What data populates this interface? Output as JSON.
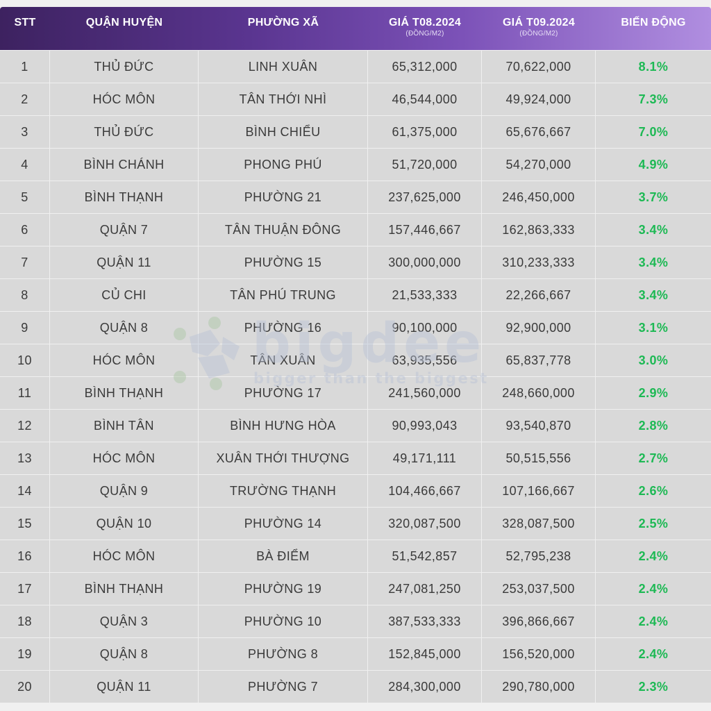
{
  "header": {
    "stt": "STT",
    "district": "QUẬN HUYỆN",
    "ward": "PHƯỜNG XÃ",
    "price_aug": "GIÁ T08.2024",
    "price_aug_unit": "(ĐỒNG/M2)",
    "price_sep": "GIÁ T09.2024",
    "price_sep_unit": "(ĐỒNG/M2)",
    "change": "BIẾN ĐỘNG"
  },
  "watermark": {
    "brand": "bigdee",
    "slogan": "bigger than the biggest"
  },
  "colors": {
    "header_start": "#3d2260",
    "header_end": "#b08ee0",
    "cell_bg": "#d9d9d9",
    "positive": "#1db954"
  },
  "chart_data": {
    "type": "table",
    "columns": [
      "STT",
      "QUẬN HUYỆN",
      "PHƯỜNG XÃ",
      "GIÁ T08.2024 (ĐỒNG/M2)",
      "GIÁ T09.2024 (ĐỒNG/M2)",
      "BIẾN ĐỘNG"
    ],
    "rows": [
      [
        "1",
        "THỦ ĐỨC",
        "LINH XUÂN",
        "65,312,000",
        "70,622,000",
        "8.1%"
      ],
      [
        "2",
        "HÓC MÔN",
        "TÂN THỚI NHÌ",
        "46,544,000",
        "49,924,000",
        "7.3%"
      ],
      [
        "3",
        "THỦ ĐỨC",
        "BÌNH CHIỂU",
        "61,375,000",
        "65,676,667",
        "7.0%"
      ],
      [
        "4",
        "BÌNH CHÁNH",
        "PHONG PHÚ",
        "51,720,000",
        "54,270,000",
        "4.9%"
      ],
      [
        "5",
        "BÌNH THẠNH",
        "PHƯỜNG 21",
        "237,625,000",
        "246,450,000",
        "3.7%"
      ],
      [
        "6",
        "QUẬN 7",
        "TÂN THUẬN ĐÔNG",
        "157,446,667",
        "162,863,333",
        "3.4%"
      ],
      [
        "7",
        "QUẬN 11",
        "PHƯỜNG 15",
        "300,000,000",
        "310,233,333",
        "3.4%"
      ],
      [
        "8",
        "CỦ CHI",
        "TÂN PHÚ TRUNG",
        "21,533,333",
        "22,266,667",
        "3.4%"
      ],
      [
        "9",
        "QUẬN 8",
        "PHƯỜNG 16",
        "90,100,000",
        "92,900,000",
        "3.1%"
      ],
      [
        "10",
        "HÓC MÔN",
        "TÂN XUÂN",
        "63,935,556",
        "65,837,778",
        "3.0%"
      ],
      [
        "11",
        "BÌNH THẠNH",
        "PHƯỜNG 17",
        "241,560,000",
        "248,660,000",
        "2.9%"
      ],
      [
        "12",
        "BÌNH TÂN",
        "BÌNH HƯNG HÒA",
        "90,993,043",
        "93,540,870",
        "2.8%"
      ],
      [
        "13",
        "HÓC MÔN",
        "XUÂN THỚI THƯỢNG",
        "49,171,111",
        "50,515,556",
        "2.7%"
      ],
      [
        "14",
        "QUẬN 9",
        "TRƯỜNG THẠNH",
        "104,466,667",
        "107,166,667",
        "2.6%"
      ],
      [
        "15",
        "QUẬN 10",
        "PHƯỜNG 14",
        "320,087,500",
        "328,087,500",
        "2.5%"
      ],
      [
        "16",
        "HÓC MÔN",
        "BÀ ĐIỂM",
        "51,542,857",
        "52,795,238",
        "2.4%"
      ],
      [
        "17",
        "BÌNH THẠNH",
        "PHƯỜNG 19",
        "247,081,250",
        "253,037,500",
        "2.4%"
      ],
      [
        "18",
        "QUẬN 3",
        "PHƯỜNG 10",
        "387,533,333",
        "396,866,667",
        "2.4%"
      ],
      [
        "19",
        "QUẬN 8",
        "PHƯỜNG 8",
        "152,845,000",
        "156,520,000",
        "2.4%"
      ],
      [
        "20",
        "QUẬN 11",
        "PHƯỜNG 7",
        "284,300,000",
        "290,780,000",
        "2.3%"
      ]
    ]
  }
}
